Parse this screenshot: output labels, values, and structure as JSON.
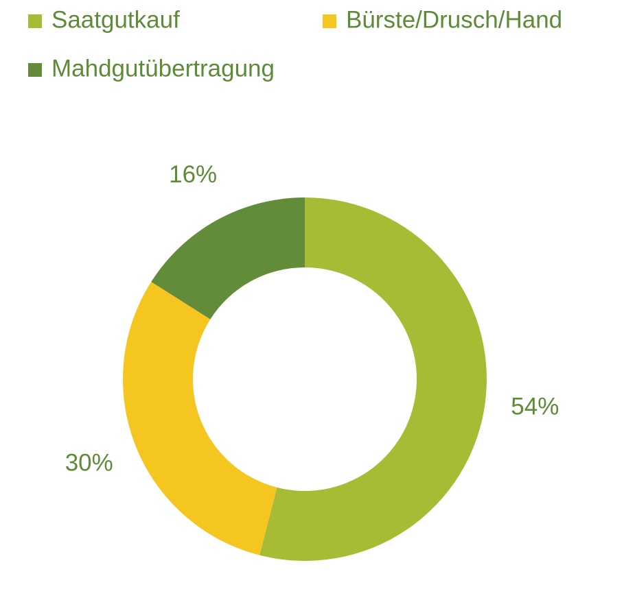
{
  "chart_data": {
    "type": "pie",
    "donut": true,
    "categories": [
      "Saatgutkauf",
      "Bürste/Drusch/Hand",
      "Mahdgutübertragung"
    ],
    "values": [
      54,
      30,
      16
    ],
    "value_labels": [
      "54%",
      "30%",
      "16%"
    ],
    "colors": [
      "#a8bb35",
      "#f5c620",
      "#628c3a"
    ],
    "legend": "top-left"
  }
}
